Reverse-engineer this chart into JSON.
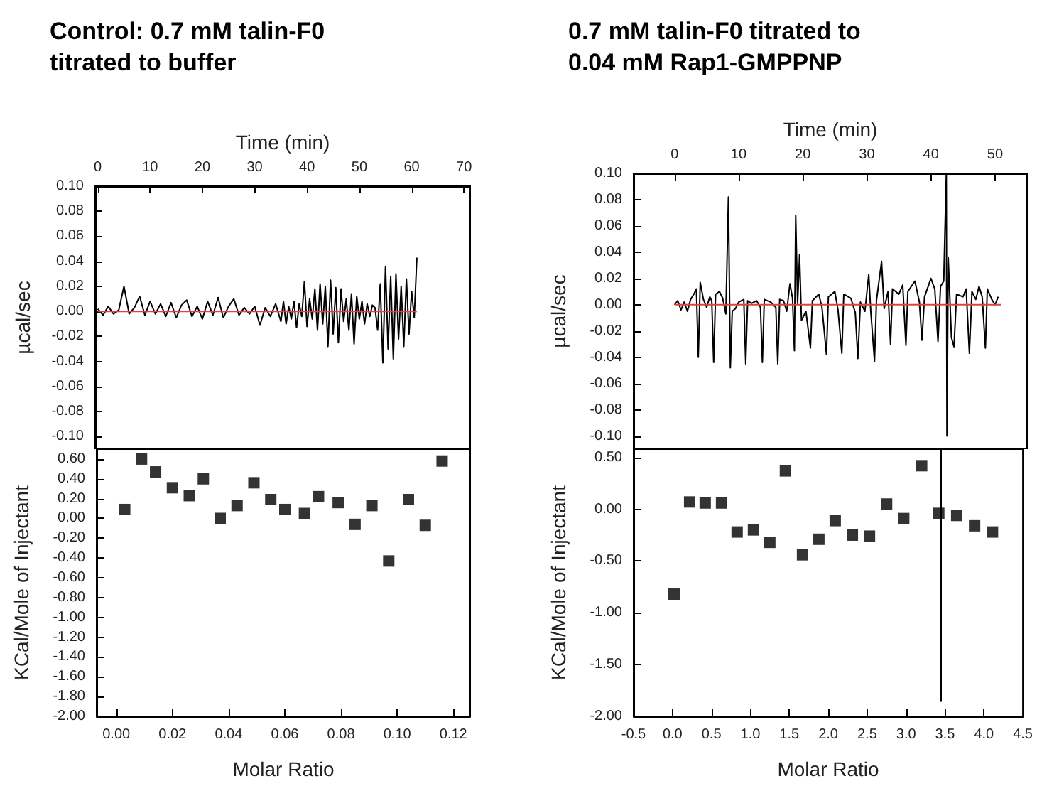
{
  "chart_data": [
    {
      "type": "line",
      "title": "Control: 0.7 mM talin-F0 titrated to buffer",
      "xlabel": "Time (min)",
      "ylabel": "µcal/sec",
      "xlim": [
        -0.5,
        71.2
      ],
      "xticks": [
        0,
        10,
        20,
        30,
        40,
        50,
        60,
        70
      ],
      "ylim": [
        -0.11,
        0.1
      ],
      "yticks": [
        {
          "value": -0.1,
          "label": "-0.10"
        },
        {
          "value": -0.08,
          "label": "-0.08"
        },
        {
          "value": -0.06,
          "label": "-0.06"
        },
        {
          "value": -0.04,
          "label": "-0.04"
        },
        {
          "value": -0.02,
          "label": "-0.02"
        },
        {
          "value": 0,
          "label": "0.00"
        },
        {
          "value": 0.02,
          "label": "0.02"
        },
        {
          "value": 0.04,
          "label": "0.04"
        },
        {
          "value": 0.06,
          "label": "0.06"
        },
        {
          "value": 0.08,
          "label": "0.08"
        },
        {
          "value": 0.1,
          "label": "0.10"
        }
      ],
      "grid": false,
      "marker": "none",
      "series": [
        {
          "color": "#000000",
          "x": [
            0,
            1,
            2,
            3,
            4,
            5,
            6,
            7,
            8,
            9,
            10,
            11,
            12,
            13,
            14,
            15,
            16,
            17,
            18,
            19,
            20,
            21,
            22,
            23,
            24,
            25,
            26,
            27,
            28,
            29,
            30,
            31,
            32,
            33,
            34,
            35,
            35.5,
            36,
            36.5,
            37,
            37.5,
            38,
            38.5,
            39,
            39.5,
            40,
            40.5,
            41,
            41.5,
            42,
            42.5,
            43,
            43.5,
            44,
            44.5,
            45,
            45.5,
            46,
            46.5,
            47,
            47.5,
            48,
            48.5,
            49,
            49.5,
            50,
            50.5,
            51,
            51.5,
            52,
            52.5,
            53,
            53.5,
            54,
            54.5,
            55,
            55.5,
            56,
            56.5,
            57,
            57.5,
            58,
            58.5,
            59,
            59.5,
            60,
            60.5,
            61
          ],
          "values": [
            0.002,
            -0.003,
            0.004,
            -0.002,
            0.001,
            0.02,
            -0.002,
            0.003,
            0.012,
            -0.003,
            0.008,
            -0.002,
            0.006,
            -0.004,
            0.007,
            -0.005,
            0.005,
            0.009,
            -0.004,
            0.004,
            -0.006,
            0.008,
            -0.003,
            0.011,
            -0.005,
            0.004,
            0.01,
            -0.003,
            0.003,
            -0.002,
            0.004,
            -0.011,
            0.003,
            -0.004,
            0.006,
            -0.008,
            0.008,
            -0.01,
            0.004,
            -0.006,
            0.008,
            -0.013,
            0.006,
            -0.004,
            0.024,
            -0.012,
            0.01,
            -0.006,
            0.018,
            -0.015,
            0.022,
            -0.01,
            0.02,
            -0.028,
            0.025,
            -0.018,
            0.019,
            -0.025,
            0.018,
            -0.008,
            0.01,
            -0.015,
            0.014,
            -0.026,
            0.012,
            -0.006,
            0.008,
            -0.01,
            0.006,
            -0.004,
            0.005,
            0.003,
            -0.015,
            0.022,
            -0.041,
            0.036,
            -0.03,
            0.028,
            -0.038,
            0.03,
            -0.022,
            0.02,
            -0.028,
            0.026,
            -0.018,
            0.016,
            -0.005,
            0.043
          ]
        },
        {
          "color": "#e04040",
          "x": [
            0,
            61
          ],
          "values": [
            0,
            0
          ]
        }
      ]
    },
    {
      "type": "scatter",
      "xlabel": "Molar Ratio",
      "ylabel": "KCal/Mole of Injectant",
      "xlim": [
        -0.007,
        0.126
      ],
      "xticks": [
        {
          "value": 0,
          "label": "0.00"
        },
        {
          "value": 0.02,
          "label": "0.02"
        },
        {
          "value": 0.04,
          "label": "0.04"
        },
        {
          "value": 0.06,
          "label": "0.06"
        },
        {
          "value": 0.08,
          "label": "0.08"
        },
        {
          "value": 0.1,
          "label": "0.10"
        },
        {
          "value": 0.12,
          "label": "0.12"
        }
      ],
      "ylim": [
        -2,
        0.7
      ],
      "yticks": [
        {
          "value": -2,
          "label": "-2.00"
        },
        {
          "value": -1.8,
          "label": "-1.80"
        },
        {
          "value": -1.6,
          "label": "-1.60"
        },
        {
          "value": -1.4,
          "label": "-1.40"
        },
        {
          "value": -1.2,
          "label": "-1.20"
        },
        {
          "value": -1,
          "label": "-1.00"
        },
        {
          "value": -0.8,
          "label": "-0.80"
        },
        {
          "value": -0.6,
          "label": "-0.60"
        },
        {
          "value": -0.4,
          "label": "-0.40"
        },
        {
          "value": -0.2,
          "label": "-0.20"
        },
        {
          "value": 0,
          "label": "0.00"
        },
        {
          "value": 0.2,
          "label": "0.20"
        },
        {
          "value": 0.4,
          "label": "0.40"
        },
        {
          "value": 0.6,
          "label": "0.60"
        }
      ],
      "grid": false,
      "marker": "square",
      "series": [
        {
          "color": "#000000",
          "x": [
            0.003,
            0.009,
            0.014,
            0.02,
            0.026,
            0.031,
            0.037,
            0.043,
            0.049,
            0.055,
            0.06,
            0.067,
            0.072,
            0.079,
            0.085,
            0.091,
            0.097,
            0.104,
            0.11,
            0.116
          ],
          "values": [
            0.09,
            0.6,
            0.47,
            0.31,
            0.23,
            0.4,
            0,
            0.13,
            0.36,
            0.19,
            0.09,
            0.05,
            0.22,
            0.16,
            -0.06,
            0.13,
            -0.43,
            0.19,
            -0.07,
            0.58
          ]
        }
      ]
    },
    {
      "type": "line",
      "title": "0.7 mM talin-F0 titrated to 0.04 mM Rap1-GMPPNP",
      "xlabel": "Time (min)",
      "ylabel": "µcal/sec",
      "xlim": [
        -6.4,
        55
      ],
      "xticks": [
        0,
        10,
        20,
        30,
        40,
        50
      ],
      "ylim": [
        -0.11,
        0.1
      ],
      "yticks": [
        {
          "value": -0.1,
          "label": "-0.10"
        },
        {
          "value": -0.08,
          "label": "-0.08"
        },
        {
          "value": -0.06,
          "label": "-0.06"
        },
        {
          "value": -0.04,
          "label": "-0.04"
        },
        {
          "value": -0.02,
          "label": "-0.02"
        },
        {
          "value": 0,
          "label": "0.00"
        },
        {
          "value": 0.02,
          "label": "0.02"
        },
        {
          "value": 0.04,
          "label": "0.04"
        },
        {
          "value": 0.06,
          "label": "0.06"
        },
        {
          "value": 0.08,
          "label": "0.08"
        },
        {
          "value": 0.1,
          "label": "0.10"
        }
      ],
      "grid": false,
      "marker": "none",
      "series": [
        {
          "color": "#000000",
          "x": [
            0,
            0.5,
            1,
            1.5,
            2,
            2.5,
            3,
            3.4,
            3.7,
            4,
            4.5,
            5,
            5.5,
            5.8,
            6.1,
            6.4,
            7,
            7.5,
            8,
            8.4,
            8.7,
            9,
            9.5,
            10,
            10.8,
            11.1,
            11.4,
            12,
            12.8,
            13.4,
            13.7,
            14,
            15,
            15.8,
            16.1,
            16.4,
            17,
            17.5,
            18,
            18.4,
            18.7,
            18.9,
            19.2,
            19.5,
            19.8,
            20.5,
            21.2,
            21.5,
            22.5,
            23,
            23.7,
            24,
            25,
            25.5,
            26.1,
            26.4,
            27.5,
            28.2,
            28.6,
            29,
            29.7,
            30.3,
            30.6,
            31.2,
            31.5,
            32.3,
            32.7,
            33.3,
            33.7,
            34,
            35,
            35.6,
            36.1,
            36.4,
            37.5,
            38.2,
            38.6,
            39,
            40,
            40.6,
            41.1,
            41.5,
            42,
            42.4,
            42.5,
            42.7,
            43.2,
            43.6,
            44,
            45,
            45.5,
            46,
            46.4,
            47,
            47.5,
            48,
            48.5,
            48.8,
            49.5,
            50,
            50.5
          ],
          "values": [
            0,
            0.003,
            -0.004,
            0.002,
            -0.005,
            0.004,
            0.008,
            0.012,
            -0.04,
            0.017,
            0.004,
            -0.002,
            0.006,
            0.003,
            -0.044,
            0.008,
            0.01,
            0.005,
            -0.007,
            0.082,
            -0.048,
            -0.005,
            -0.003,
            0.002,
            0.004,
            -0.045,
            0.003,
            0.001,
            0.003,
            -0.002,
            -0.044,
            0.004,
            0.002,
            -0.002,
            -0.045,
            0.004,
            0.003,
            -0.005,
            0.016,
            0.005,
            -0.035,
            0.068,
            0.001,
            0.038,
            -0.012,
            -0.005,
            -0.033,
            0.003,
            0.008,
            -0.002,
            -0.038,
            0.006,
            0.01,
            -0.004,
            -0.037,
            0.008,
            0.005,
            -0.006,
            -0.041,
            0.002,
            -0.005,
            0.023,
            -0.004,
            -0.043,
            0.003,
            0.033,
            -0.003,
            0.01,
            -0.03,
            0.012,
            0.008,
            0.015,
            -0.031,
            0.01,
            0.018,
            0.002,
            -0.027,
            0.006,
            0.02,
            0.012,
            -0.028,
            0.014,
            0.018,
            0.1,
            -0.1,
            0.036,
            -0.025,
            -0.032,
            0.008,
            0.006,
            0.012,
            -0.037,
            0.01,
            0.004,
            0.014,
            0.006,
            -0.033,
            0.012,
            0.004,
            0,
            0.006
          ]
        },
        {
          "color": "#e04040",
          "x": [
            0,
            51
          ],
          "values": [
            0,
            0
          ]
        }
      ]
    },
    {
      "type": "scatter",
      "xlabel": "Molar Ratio",
      "ylabel": "KCal/Mole of Injectant",
      "xlim": [
        -0.5,
        4.5
      ],
      "xticks": [
        -0.5,
        {
          "value": 0,
          "label": "0.0"
        },
        0.5,
        {
          "value": 1,
          "label": "1.0"
        },
        1.5,
        {
          "value": 2,
          "label": "2.0"
        },
        2.5,
        {
          "value": 3,
          "label": "3.0"
        },
        3.5,
        {
          "value": 4,
          "label": "4.0"
        },
        4.5
      ],
      "ylim": [
        -2,
        0.58
      ],
      "yticks": [
        {
          "value": -2,
          "label": "-2.00"
        },
        {
          "value": -1.5,
          "label": "-1.50"
        },
        {
          "value": -1,
          "label": "-1.00"
        },
        {
          "value": -0.5,
          "label": "-0.50"
        },
        {
          "value": 0,
          "label": "0.00"
        },
        {
          "value": 0.5,
          "label": "0.50"
        }
      ],
      "grid": false,
      "marker": "square",
      "series": [
        {
          "color": "#000000",
          "x": [
            0.02,
            0.22,
            0.42,
            0.63,
            0.83,
            1.04,
            1.25,
            1.45,
            1.67,
            1.88,
            2.09,
            2.31,
            2.53,
            2.75,
            2.97,
            3.2,
            3.42,
            3.65,
            3.88,
            4.11
          ],
          "values": [
            -0.82,
            0.07,
            0.06,
            0.06,
            -0.22,
            -0.2,
            -0.32,
            0.37,
            -0.44,
            -0.29,
            -0.11,
            -0.25,
            -0.26,
            0.05,
            -0.09,
            0.42,
            -0.04,
            -0.06,
            -0.16,
            -0.22
          ]
        },
        {
          "type": "line",
          "marker": "none",
          "color": "#000000",
          "x": [
            3.45,
            3.45
          ],
          "values": [
            0.58,
            -1.86
          ]
        }
      ]
    }
  ]
}
